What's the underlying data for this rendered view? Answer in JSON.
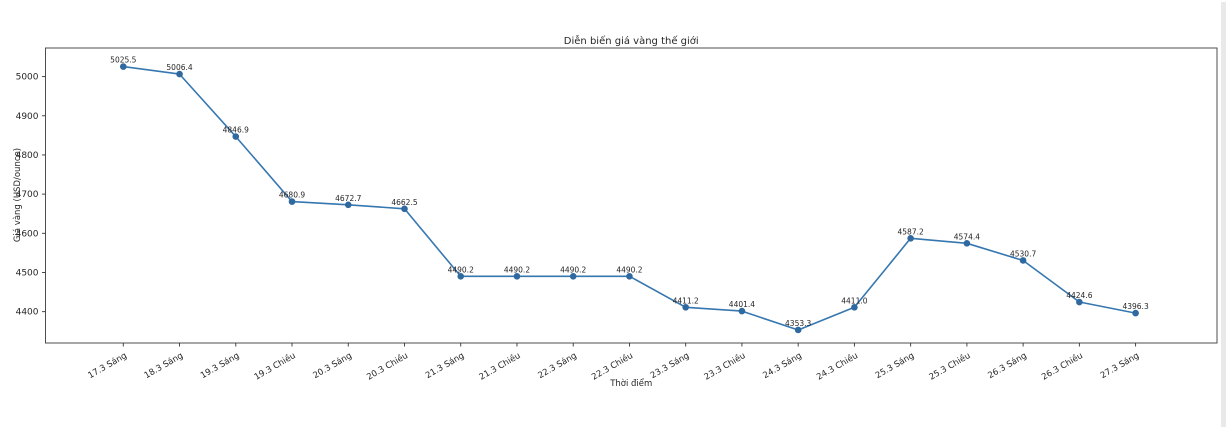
{
  "window": {
    "background": "#ffffff",
    "right_edge_color": "#e9e9eb"
  },
  "chart_data": {
    "type": "line",
    "title": "Diễn biến giá vàng thế giới",
    "xlabel": "Thời điểm",
    "ylabel": "Giá vàng (USD/ounce)",
    "categories": [
      "17.3 Sáng",
      "18.3 Sáng",
      "19.3 Sáng",
      "19.3 Chiều",
      "20.3 Sáng",
      "20.3 Chiều",
      "21.3 Sáng",
      "21.3 Chiều",
      "22.3 Sáng",
      "22.3 Chiều",
      "23.3 Sáng",
      "23.3 Chiều",
      "24.3 Sáng",
      "24.3 Chiều",
      "25.3 Sáng",
      "25.3 Chiều",
      "26.3 Sáng",
      "26.3 Chiều",
      "27.3 Sáng"
    ],
    "values": [
      5025.5,
      5006.4,
      4846.9,
      4680.9,
      4672.7,
      4662.5,
      4490.2,
      4490.2,
      4490.2,
      4490.2,
      4411.2,
      4401.4,
      4353.3,
      4411.0,
      4587.2,
      4574.4,
      4530.7,
      4424.6,
      4396.3
    ],
    "point_labels": [
      "5025.5",
      "5006.4",
      "4846.9",
      "4680.9",
      "4672.7",
      "4662.5",
      "4490.2",
      "4490.2",
      "4490.2",
      "4490.2",
      "4411.2",
      "4401.4",
      "4353.3",
      "4411.0",
      "4587.2",
      "4574.4",
      "4530.7",
      "4424.6",
      "4396.3"
    ],
    "yticks": [
      4400,
      4500,
      4600,
      4700,
      4800,
      4900,
      5000
    ],
    "ylim": [
      4320,
      5073
    ],
    "xtick_rotation_deg": 30,
    "grid": false,
    "legend": null,
    "line_color": "#3677b0",
    "marker_color": "#30699f",
    "spine_color": "#4d4d4d",
    "text_color": "#262626",
    "marker": "circle"
  }
}
